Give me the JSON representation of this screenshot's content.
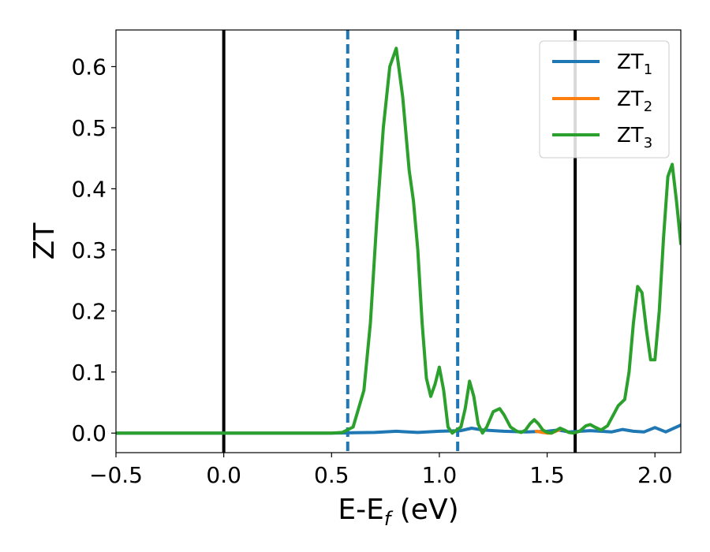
{
  "chart_data": {
    "type": "line",
    "xlabel": "E-E",
    "xlabel_sub": "f",
    "xlabel_unit": " (eV)",
    "ylabel": "ZT",
    "xlim": [
      -0.5,
      2.12
    ],
    "ylim": [
      -0.032,
      0.66
    ],
    "x_ticks": [
      {
        "value": -0.5,
        "label": "−0.5"
      },
      {
        "value": 0.0,
        "label": "0.0"
      },
      {
        "value": 0.5,
        "label": "0.5"
      },
      {
        "value": 1.0,
        "label": "1.0"
      },
      {
        "value": 1.5,
        "label": "1.5"
      },
      {
        "value": 2.0,
        "label": "2.0"
      }
    ],
    "y_ticks": [
      {
        "value": 0.0,
        "label": "0.0"
      },
      {
        "value": 0.1,
        "label": "0.1"
      },
      {
        "value": 0.2,
        "label": "0.2"
      },
      {
        "value": 0.3,
        "label": "0.3"
      },
      {
        "value": 0.4,
        "label": "0.4"
      },
      {
        "value": 0.5,
        "label": "0.5"
      },
      {
        "value": 0.6,
        "label": "0.6"
      }
    ],
    "grid": false,
    "legend_position": "top-right",
    "vlines": [
      {
        "x": 0.0,
        "style": "solid",
        "color": "#000000"
      },
      {
        "x": 0.575,
        "style": "dashed",
        "color": "#1f77b4"
      },
      {
        "x": 1.085,
        "style": "dashed",
        "color": "#1f77b4"
      },
      {
        "x": 1.63,
        "style": "solid",
        "color": "#000000"
      }
    ],
    "series": [
      {
        "name": "ZT",
        "name_sub": "1",
        "color": "#1f77b4",
        "x": [
          -0.5,
          0.0,
          0.5,
          0.6,
          0.7,
          0.8,
          0.9,
          1.0,
          1.1,
          1.15,
          1.2,
          1.3,
          1.4,
          1.5,
          1.55,
          1.6,
          1.7,
          1.8,
          1.85,
          1.9,
          1.95,
          2.0,
          2.05,
          2.12
        ],
        "y": [
          0.0,
          0.0,
          0.0,
          0.0005,
          0.001,
          0.003,
          0.001,
          0.003,
          0.004,
          0.008,
          0.005,
          0.003,
          0.002,
          0.003,
          0.005,
          0.002,
          0.004,
          0.002,
          0.006,
          0.003,
          0.002,
          0.009,
          0.002,
          0.013
        ]
      },
      {
        "name": "ZT",
        "name_sub": "2",
        "color": "#ff7f0e",
        "x": [
          1.45,
          1.48,
          1.5,
          1.52,
          1.54,
          1.56
        ],
        "y": [
          0.003,
          0.001,
          0.0,
          0.0,
          0.003,
          0.006
        ]
      },
      {
        "name": "ZT",
        "name_sub": "3",
        "color": "#2ca02c",
        "x": [
          -0.5,
          0.0,
          0.4,
          0.5,
          0.55,
          0.6,
          0.65,
          0.68,
          0.71,
          0.74,
          0.77,
          0.8,
          0.83,
          0.86,
          0.88,
          0.9,
          0.92,
          0.94,
          0.96,
          0.98,
          1.0,
          1.02,
          1.04,
          1.06,
          1.08,
          1.1,
          1.12,
          1.14,
          1.16,
          1.18,
          1.2,
          1.22,
          1.25,
          1.28,
          1.3,
          1.33,
          1.36,
          1.38,
          1.4,
          1.42,
          1.44,
          1.46,
          1.48,
          1.5,
          1.52,
          1.54,
          1.56,
          1.58,
          1.6,
          1.62,
          1.65,
          1.68,
          1.7,
          1.72,
          1.75,
          1.78,
          1.8,
          1.83,
          1.86,
          1.88,
          1.9,
          1.92,
          1.94,
          1.96,
          1.98,
          2.0,
          2.02,
          2.04,
          2.06,
          2.08,
          2.1,
          2.12
        ],
        "y": [
          0.0,
          0.0,
          0.0,
          0.0,
          0.001,
          0.01,
          0.07,
          0.18,
          0.35,
          0.5,
          0.6,
          0.63,
          0.55,
          0.43,
          0.38,
          0.3,
          0.18,
          0.09,
          0.06,
          0.08,
          0.108,
          0.07,
          0.01,
          0.0,
          0.005,
          0.01,
          0.04,
          0.085,
          0.06,
          0.015,
          0.0,
          0.01,
          0.035,
          0.04,
          0.03,
          0.01,
          0.003,
          0.001,
          0.005,
          0.015,
          0.022,
          0.015,
          0.005,
          0.001,
          0.0,
          0.004,
          0.008,
          0.005,
          0.001,
          0.0,
          0.003,
          0.012,
          0.014,
          0.01,
          0.005,
          0.012,
          0.025,
          0.045,
          0.055,
          0.1,
          0.18,
          0.24,
          0.23,
          0.17,
          0.12,
          0.12,
          0.2,
          0.32,
          0.42,
          0.44,
          0.38,
          0.31
        ]
      }
    ]
  }
}
